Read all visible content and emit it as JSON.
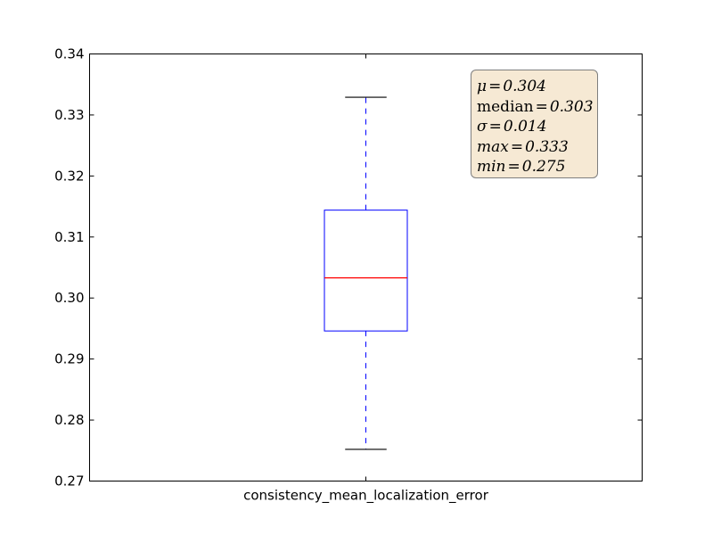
{
  "chart_data": {
    "type": "boxplot",
    "title": "",
    "xlabel": "",
    "ylabel": "",
    "categories": [
      "consistency_mean_localization_error"
    ],
    "ylim": [
      0.27,
      0.34
    ],
    "yticks": [
      "0.27",
      "0.28",
      "0.29",
      "0.30",
      "0.31",
      "0.32",
      "0.33",
      "0.34"
    ],
    "ytick_values": [
      0.27,
      0.28,
      0.29,
      0.3,
      0.31,
      0.32,
      0.33,
      0.34
    ],
    "boxes": [
      {
        "label": "consistency_mean_localization_error",
        "whisker_low": 0.2752,
        "q1": 0.2946,
        "median": 0.3033,
        "q3": 0.3144,
        "whisker_high": 0.3329
      }
    ],
    "colors": {
      "box": "#0000ff",
      "median": "#ff0000",
      "whisker": "#0000ff",
      "cap": "#000000",
      "axes": "#000000"
    },
    "annotation": {
      "placement": "top-right",
      "lines": [
        {
          "key": "μ",
          "value": "0.304",
          "italic_key": true
        },
        {
          "key": "median",
          "value": "0.303",
          "italic_key": false
        },
        {
          "key": "σ",
          "value": "0.014",
          "italic_key": true
        },
        {
          "key": "max",
          "value": "0.333",
          "italic_key": true
        },
        {
          "key": "min",
          "value": "0.275",
          "italic_key": true
        }
      ]
    }
  }
}
